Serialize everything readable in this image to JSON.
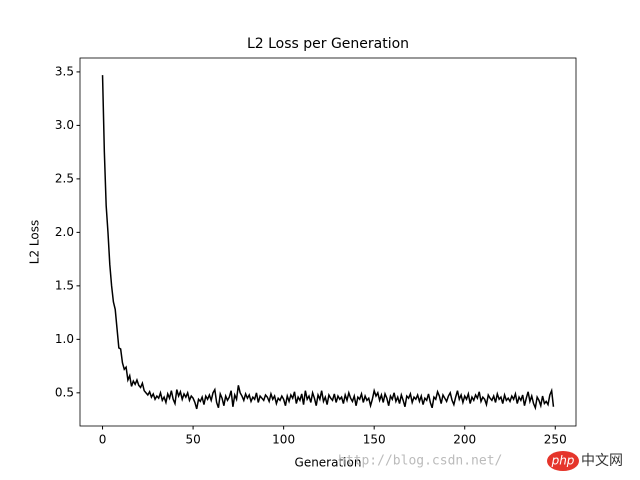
{
  "chart_data": {
    "type": "line",
    "title": "L2 Loss per Generation",
    "x_label": "Generation",
    "y_label": "L2 Loss",
    "watermark": "http://blog.csdn.net/",
    "logo": "php",
    "logo_text": "中文网",
    "xlim": [
      -12.45,
      261.45
    ],
    "ylim": [
      0.19,
      3.63
    ],
    "xticks": [
      0,
      50,
      100,
      150,
      200,
      250
    ],
    "yticks": [
      0.5,
      {
        "value": 1,
        "label": "1.0"
      },
      1.5,
      {
        "value": 2,
        "label": "2.0"
      },
      2.5,
      {
        "value": 3,
        "label": "3.0"
      },
      3.5
    ],
    "x": [
      0,
      1,
      2,
      3,
      4,
      5,
      6,
      7,
      8,
      9,
      10,
      11,
      12,
      13,
      14,
      15,
      16,
      17,
      18,
      19,
      20,
      21,
      22,
      23,
      24,
      25,
      26,
      27,
      28,
      29,
      30,
      31,
      32,
      33,
      34,
      35,
      36,
      37,
      38,
      39,
      40,
      41,
      42,
      43,
      44,
      45,
      46,
      47,
      48,
      49,
      50,
      51,
      52,
      53,
      54,
      55,
      56,
      57,
      58,
      59,
      60,
      61,
      62,
      63,
      64,
      65,
      66,
      67,
      68,
      69,
      70,
      71,
      72,
      73,
      74,
      75,
      76,
      77,
      78,
      79,
      80,
      81,
      82,
      83,
      84,
      85,
      86,
      87,
      88,
      89,
      90,
      91,
      92,
      93,
      94,
      95,
      96,
      97,
      98,
      99,
      100,
      101,
      102,
      103,
      104,
      105,
      106,
      107,
      108,
      109,
      110,
      111,
      112,
      113,
      114,
      115,
      116,
      117,
      118,
      119,
      120,
      121,
      122,
      123,
      124,
      125,
      126,
      127,
      128,
      129,
      130,
      131,
      132,
      133,
      134,
      135,
      136,
      137,
      138,
      139,
      140,
      141,
      142,
      143,
      144,
      145,
      146,
      147,
      148,
      149,
      150,
      151,
      152,
      153,
      154,
      155,
      156,
      157,
      158,
      159,
      160,
      161,
      162,
      163,
      164,
      165,
      166,
      167,
      168,
      169,
      170,
      171,
      172,
      173,
      174,
      175,
      176,
      177,
      178,
      179,
      180,
      181,
      182,
      183,
      184,
      185,
      186,
      187,
      188,
      189,
      190,
      191,
      192,
      193,
      194,
      195,
      196,
      197,
      198,
      199,
      200,
      201,
      202,
      203,
      204,
      205,
      206,
      207,
      208,
      209,
      210,
      211,
      212,
      213,
      214,
      215,
      216,
      217,
      218,
      219,
      220,
      221,
      222,
      223,
      224,
      225,
      226,
      227,
      228,
      229,
      230,
      231,
      232,
      233,
      234,
      235,
      236,
      237,
      238,
      239,
      240,
      241,
      242,
      243,
      244,
      245,
      246,
      247,
      248,
      249
    ],
    "series": [
      {
        "color": "#000000",
        "values": [
          3.47,
          2.75,
          2.25,
          2.0,
          1.7,
          1.5,
          1.35,
          1.28,
          1.1,
          0.92,
          0.91,
          0.78,
          0.72,
          0.74,
          0.62,
          0.66,
          0.56,
          0.61,
          0.58,
          0.62,
          0.57,
          0.55,
          0.59,
          0.52,
          0.5,
          0.48,
          0.51,
          0.46,
          0.49,
          0.44,
          0.47,
          0.45,
          0.5,
          0.43,
          0.46,
          0.41,
          0.49,
          0.45,
          0.52,
          0.44,
          0.4,
          0.53,
          0.47,
          0.51,
          0.44,
          0.49,
          0.46,
          0.5,
          0.43,
          0.47,
          0.45,
          0.41,
          0.35,
          0.44,
          0.42,
          0.46,
          0.39,
          0.47,
          0.44,
          0.48,
          0.43,
          0.5,
          0.53,
          0.41,
          0.36,
          0.49,
          0.45,
          0.38,
          0.47,
          0.43,
          0.46,
          0.52,
          0.37,
          0.48,
          0.44,
          0.57,
          0.5,
          0.47,
          0.43,
          0.49,
          0.45,
          0.48,
          0.42,
          0.46,
          0.44,
          0.5,
          0.41,
          0.47,
          0.45,
          0.43,
          0.48,
          0.46,
          0.42,
          0.49,
          0.44,
          0.47,
          0.4,
          0.45,
          0.43,
          0.47,
          0.44,
          0.38,
          0.47,
          0.42,
          0.48,
          0.45,
          0.51,
          0.4,
          0.46,
          0.43,
          0.49,
          0.39,
          0.52,
          0.44,
          0.47,
          0.41,
          0.5,
          0.45,
          0.38,
          0.48,
          0.44,
          0.52,
          0.42,
          0.46,
          0.39,
          0.48,
          0.45,
          0.43,
          0.49,
          0.41,
          0.47,
          0.44,
          0.46,
          0.4,
          0.48,
          0.43,
          0.5,
          0.45,
          0.42,
          0.47,
          0.38,
          0.46,
          0.44,
          0.49,
          0.41,
          0.47,
          0.43,
          0.45,
          0.38,
          0.44,
          0.52,
          0.47,
          0.5,
          0.43,
          0.48,
          0.41,
          0.49,
          0.45,
          0.38,
          0.47,
          0.44,
          0.5,
          0.42,
          0.46,
          0.4,
          0.48,
          0.43,
          0.37,
          0.47,
          0.45,
          0.49,
          0.41,
          0.46,
          0.44,
          0.48,
          0.42,
          0.47,
          0.39,
          0.45,
          0.43,
          0.49,
          0.41,
          0.36,
          0.46,
          0.44,
          0.51,
          0.47,
          0.4,
          0.48,
          0.45,
          0.42,
          0.47,
          0.5,
          0.43,
          0.39,
          0.46,
          0.52,
          0.44,
          0.48,
          0.41,
          0.47,
          0.44,
          0.49,
          0.4,
          0.46,
          0.43,
          0.48,
          0.45,
          0.51,
          0.42,
          0.46,
          0.44,
          0.39,
          0.48,
          0.45,
          0.43,
          0.47,
          0.41,
          0.49,
          0.44,
          0.46,
          0.4,
          0.48,
          0.43,
          0.45,
          0.42,
          0.47,
          0.44,
          0.49,
          0.4,
          0.46,
          0.43,
          0.48,
          0.38,
          0.45,
          0.51,
          0.42,
          0.47,
          0.4,
          0.36,
          0.46,
          0.43,
          0.38,
          0.47,
          0.4,
          0.42,
          0.39,
          0.48,
          0.52,
          0.37
        ]
      }
    ]
  }
}
